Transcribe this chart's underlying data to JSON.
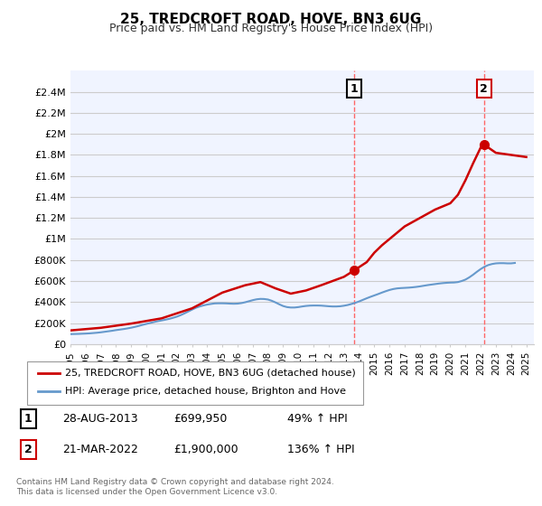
{
  "title": "25, TREDCROFT ROAD, HOVE, BN3 6UG",
  "subtitle": "Price paid vs. HM Land Registry's House Price Index (HPI)",
  "ylim": [
    0,
    2600000
  ],
  "yticks": [
    0,
    200000,
    400000,
    600000,
    800000,
    1000000,
    1200000,
    1400000,
    1600000,
    1800000,
    2000000,
    2200000,
    2400000
  ],
  "ytick_labels": [
    "£0",
    "£200K",
    "£400K",
    "£600K",
    "£800K",
    "£1M",
    "£1.2M",
    "£1.4M",
    "£1.6M",
    "£1.8M",
    "£2M",
    "£2.2M",
    "£2.4M"
  ],
  "xlim_start": 1995.0,
  "xlim_end": 2025.5,
  "background_color": "#ffffff",
  "plot_background": "#f0f4ff",
  "grid_color": "#cccccc",
  "sale1_date": 2013.66,
  "sale1_price": 699950,
  "sale1_label": "1",
  "sale1_annotation": "28-AUG-2013",
  "sale1_price_str": "£699,950",
  "sale1_hpi_str": "49% ↑ HPI",
  "sale2_date": 2022.22,
  "sale2_price": 1900000,
  "sale2_label": "2",
  "sale2_annotation": "21-MAR-2022",
  "sale2_price_str": "£1,900,000",
  "sale2_hpi_str": "136% ↑ HPI",
  "house_line_color": "#cc0000",
  "hpi_line_color": "#6699cc",
  "sale_marker_color": "#cc0000",
  "vline_color": "#ff6666",
  "legend_house_label": "25, TREDCROFT ROAD, HOVE, BN3 6UG (detached house)",
  "legend_hpi_label": "HPI: Average price, detached house, Brighton and Hove",
  "footer_text": "Contains HM Land Registry data © Crown copyright and database right 2024.\nThis data is licensed under the Open Government Licence v3.0.",
  "hpi_years": [
    1995.0,
    1995.25,
    1995.5,
    1995.75,
    1996.0,
    1996.25,
    1996.5,
    1996.75,
    1997.0,
    1997.25,
    1997.5,
    1997.75,
    1998.0,
    1998.25,
    1998.5,
    1998.75,
    1999.0,
    1999.25,
    1999.5,
    1999.75,
    2000.0,
    2000.25,
    2000.5,
    2000.75,
    2001.0,
    2001.25,
    2001.5,
    2001.75,
    2002.0,
    2002.25,
    2002.5,
    2002.75,
    2003.0,
    2003.25,
    2003.5,
    2003.75,
    2004.0,
    2004.25,
    2004.5,
    2004.75,
    2005.0,
    2005.25,
    2005.5,
    2005.75,
    2006.0,
    2006.25,
    2006.5,
    2006.75,
    2007.0,
    2007.25,
    2007.5,
    2007.75,
    2008.0,
    2008.25,
    2008.5,
    2008.75,
    2009.0,
    2009.25,
    2009.5,
    2009.75,
    2010.0,
    2010.25,
    2010.5,
    2010.75,
    2011.0,
    2011.25,
    2011.5,
    2011.75,
    2012.0,
    2012.25,
    2012.5,
    2012.75,
    2013.0,
    2013.25,
    2013.5,
    2013.75,
    2014.0,
    2014.25,
    2014.5,
    2014.75,
    2015.0,
    2015.25,
    2015.5,
    2015.75,
    2016.0,
    2016.25,
    2016.5,
    2016.75,
    2017.0,
    2017.25,
    2017.5,
    2017.75,
    2018.0,
    2018.25,
    2018.5,
    2018.75,
    2019.0,
    2019.25,
    2019.5,
    2019.75,
    2020.0,
    2020.25,
    2020.5,
    2020.75,
    2021.0,
    2021.25,
    2021.5,
    2021.75,
    2022.0,
    2022.25,
    2022.5,
    2022.75,
    2023.0,
    2023.25,
    2023.5,
    2023.75,
    2024.0,
    2024.25
  ],
  "hpi_values": [
    95000,
    96000,
    97000,
    98500,
    100000,
    102000,
    105000,
    108000,
    112000,
    117000,
    122000,
    127000,
    133000,
    138000,
    143000,
    149000,
    156000,
    164000,
    173000,
    183000,
    192000,
    201000,
    210000,
    218000,
    225000,
    232000,
    240000,
    250000,
    261000,
    275000,
    292000,
    310000,
    328000,
    345000,
    358000,
    368000,
    376000,
    382000,
    387000,
    388000,
    388000,
    387000,
    385000,
    384000,
    385000,
    390000,
    398000,
    408000,
    418000,
    426000,
    430000,
    429000,
    424000,
    412000,
    396000,
    378000,
    362000,
    352000,
    348000,
    348000,
    352000,
    358000,
    363000,
    366000,
    367000,
    367000,
    366000,
    363000,
    360000,
    358000,
    358000,
    360000,
    365000,
    372000,
    382000,
    393000,
    406000,
    421000,
    436000,
    450000,
    463000,
    476000,
    490000,
    503000,
    515000,
    524000,
    530000,
    533000,
    535000,
    537000,
    540000,
    544000,
    549000,
    555000,
    561000,
    566000,
    571000,
    576000,
    580000,
    583000,
    585000,
    586000,
    590000,
    600000,
    614000,
    635000,
    660000,
    688000,
    714000,
    736000,
    752000,
    762000,
    768000,
    770000,
    770000,
    768000,
    768000,
    772000
  ],
  "house_years": [
    1995.5,
    2013.66,
    2022.22
  ],
  "house_values": [
    130000,
    699950,
    1900000
  ]
}
